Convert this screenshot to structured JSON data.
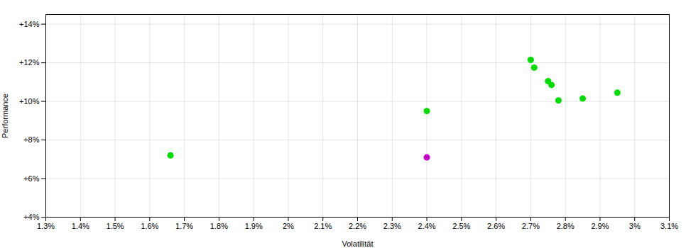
{
  "chart_data": {
    "type": "scatter",
    "xlabel": "Volatilität",
    "ylabel": "Performance",
    "series": [
      {
        "color": "#00dd00",
        "x": [
          0.0166,
          0.024,
          0.027,
          0.0271,
          0.0275,
          0.0276,
          0.0278,
          0.0285,
          0.0295
        ],
        "values": [
          0.072,
          0.095,
          0.1215,
          0.1175,
          0.1105,
          0.1085,
          0.1005,
          0.1015,
          0.1045
        ]
      },
      {
        "color": "#cc00cc",
        "x": [
          0.024
        ],
        "values": [
          0.071
        ]
      }
    ],
    "xlim": [
      0.013,
      0.031
    ],
    "ylim": [
      0.04,
      0.145
    ],
    "xticks": [
      {
        "value": 0.013,
        "label": "1.3%"
      },
      {
        "value": 0.014,
        "label": "1.4%"
      },
      {
        "value": 0.015,
        "label": "1.5%"
      },
      {
        "value": 0.016,
        "label": "1.6%"
      },
      {
        "value": 0.017,
        "label": "1.7%"
      },
      {
        "value": 0.018,
        "label": "1.8%"
      },
      {
        "value": 0.019,
        "label": "1.9%"
      },
      {
        "value": 0.02,
        "label": "2%"
      },
      {
        "value": 0.021,
        "label": "2.1%"
      },
      {
        "value": 0.022,
        "label": "2.2%"
      },
      {
        "value": 0.023,
        "label": "2.3%"
      },
      {
        "value": 0.024,
        "label": "2.4%"
      },
      {
        "value": 0.025,
        "label": "2.5%"
      },
      {
        "value": 0.026,
        "label": "2.6%"
      },
      {
        "value": 0.027,
        "label": "2.7%"
      },
      {
        "value": 0.028,
        "label": "2.8%"
      },
      {
        "value": 0.029,
        "label": "2.9%"
      },
      {
        "value": 0.03,
        "label": "3%"
      },
      {
        "value": 0.031,
        "label": "3.1%"
      }
    ],
    "yticks": [
      {
        "value": 0.04,
        "label": "+4%"
      },
      {
        "value": 0.06,
        "label": "+6%"
      },
      {
        "value": 0.08,
        "label": "+8%"
      },
      {
        "value": 0.1,
        "label": "+10%"
      },
      {
        "value": 0.12,
        "label": "+12%"
      },
      {
        "value": 0.14,
        "label": "+14%"
      }
    ],
    "grid": true
  }
}
